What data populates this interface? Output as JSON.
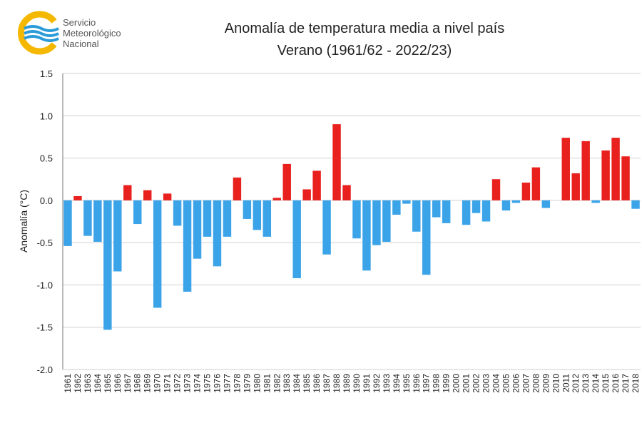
{
  "logo": {
    "line1": "Servicio",
    "line2": "Meteorológico",
    "line3": "Nacional"
  },
  "colors": {
    "positive": "#e8211e",
    "negative": "#3ba3e8",
    "grid": "#cfcfcf",
    "axis": "#777777",
    "logo_yellow": "#f5b800",
    "logo_blue": "#2a9bd8"
  },
  "chart_data": {
    "type": "bar",
    "title": "Anomalía de temperatura media a nivel país",
    "subtitle": "Verano (1961/62 - 2022/23)",
    "ylabel": "Anomalía (°C)",
    "xlabel": "",
    "ylim": [
      -2.0,
      1.5
    ],
    "yticks": [
      "1.5",
      "1.0",
      "0.5",
      "0.0",
      "-0.5",
      "-1.0",
      "-1.5",
      "-2.0"
    ],
    "ytick_values": [
      1.5,
      1.0,
      0.5,
      0.0,
      -0.5,
      -1.0,
      -1.5,
      -2.0
    ],
    "grid": true,
    "categories": [
      "1961",
      "1962",
      "1963",
      "1964",
      "1965",
      "1966",
      "1967",
      "1968",
      "1969",
      "1970",
      "1971",
      "1972",
      "1973",
      "1974",
      "1975",
      "1976",
      "1977",
      "1978",
      "1979",
      "1980",
      "1981",
      "1982",
      "1983",
      "1984",
      "1985",
      "1986",
      "1987",
      "1988",
      "1989",
      "1990",
      "1991",
      "1992",
      "1993",
      "1994",
      "1995",
      "1996",
      "1997",
      "1998",
      "1999",
      "2000",
      "2001",
      "2002",
      "2003",
      "2004",
      "2005",
      "2006",
      "2007",
      "2008",
      "2009",
      "2010",
      "2011",
      "2012",
      "2013",
      "2014",
      "2015",
      "2016",
      "2017",
      "2018"
    ],
    "values": [
      -0.54,
      0.05,
      -0.42,
      -0.49,
      -1.53,
      -0.84,
      0.18,
      -0.28,
      0.12,
      -1.27,
      0.08,
      -0.3,
      -1.08,
      -0.69,
      -0.43,
      -0.78,
      -0.43,
      0.27,
      -0.22,
      -0.35,
      -0.43,
      0.03,
      0.43,
      -0.92,
      0.13,
      0.35,
      -0.64,
      0.9,
      0.18,
      -0.45,
      -0.83,
      -0.53,
      -0.49,
      -0.17,
      -0.04,
      -0.37,
      -0.88,
      -0.2,
      -0.27,
      0.0,
      -0.29,
      -0.15,
      -0.25,
      0.25,
      -0.12,
      -0.03,
      0.21,
      0.39,
      -0.09,
      0.0,
      0.74,
      0.32,
      0.7,
      -0.03,
      0.59,
      0.74,
      0.52,
      -0.1
    ]
  }
}
